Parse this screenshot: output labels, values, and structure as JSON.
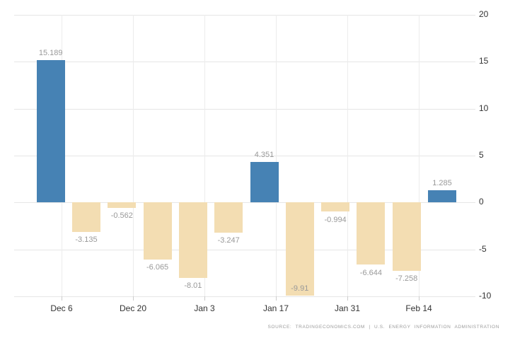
{
  "chart_data": {
    "type": "bar",
    "title": "",
    "values": [
      15.189,
      -3.135,
      -0.562,
      -6.065,
      -8.01,
      -3.247,
      4.351,
      -9.91,
      -0.994,
      -6.644,
      -7.258,
      1.285
    ],
    "x_tick_labels": [
      "Dec 6",
      "Dec 20",
      "Jan 3",
      "Jan 17",
      "Jan 31",
      "Feb 14"
    ],
    "y_tick_labels": [
      "20",
      "15",
      "10",
      "5",
      "0",
      "-5",
      "-10"
    ],
    "ylim": [
      -10,
      20
    ],
    "grid": true,
    "legend": "none",
    "colors": {
      "positive": "#4682B4",
      "negative": "#F3DDB2",
      "grid_h": "#e6e6e6",
      "grid_v": "#ececec",
      "tick": "#cccccc",
      "axis_label": "#333333",
      "value_label": "#999999"
    },
    "source_text": "SOURCE: TRADINGECONOMICS.COM | U.S. ENERGY INFORMATION ADMINISTRATION"
  }
}
